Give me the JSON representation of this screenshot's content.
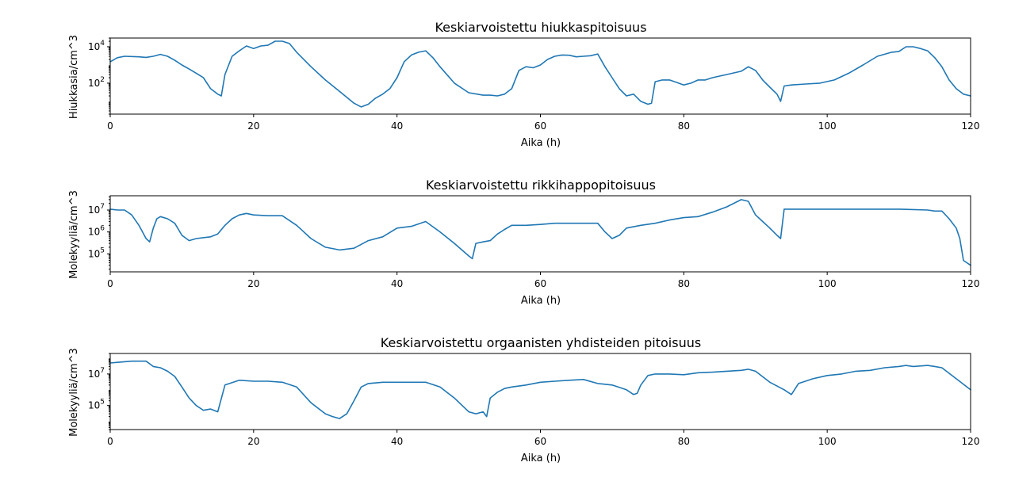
{
  "colors": {
    "series": "#1f77b4",
    "axis": "#000000",
    "background": "#ffffff"
  },
  "chart_data": [
    {
      "type": "line",
      "title": "Keskiarvoistettu hiukkaspitoisuus",
      "xlabel": "Aika (h)",
      "ylabel": "Hiukkasia/cm^3",
      "xlim": [
        0,
        120
      ],
      "ylim": [
        2,
        30000
      ],
      "yscale": "log",
      "xticks": [
        "0",
        "20",
        "40",
        "60",
        "80",
        "100",
        "120"
      ],
      "yticks": [
        {
          "value": 100,
          "base": "10",
          "exp": "2"
        },
        {
          "value": 10000,
          "base": "10",
          "exp": "4"
        }
      ],
      "grid": false,
      "legend": "none",
      "x": [
        0,
        1,
        2,
        4,
        5,
        6,
        7,
        8,
        9,
        10,
        11,
        12,
        13,
        14,
        15,
        15.5,
        16,
        17,
        18,
        19,
        20,
        21,
        22,
        23,
        24,
        25,
        26,
        28,
        30,
        32,
        34,
        35,
        36,
        37,
        38,
        39,
        40,
        41,
        42,
        43,
        44,
        45,
        46,
        48,
        50,
        52,
        53,
        54,
        55,
        56,
        57,
        58,
        59,
        60,
        61,
        62,
        63,
        64,
        65,
        66,
        67,
        68,
        69,
        70,
        71,
        72,
        73,
        74,
        75,
        75.5,
        76,
        77,
        78,
        79,
        80,
        81,
        82,
        83,
        84,
        86,
        88,
        89,
        90,
        91,
        92,
        93,
        93.5,
        94,
        95,
        97,
        99,
        101,
        103,
        105,
        107,
        109,
        110,
        111,
        112,
        113,
        114,
        115,
        116,
        117,
        118,
        119,
        120
      ],
      "values": [
        1500,
        2500,
        3000,
        2800,
        2600,
        3000,
        3800,
        3000,
        1800,
        1000,
        600,
        350,
        200,
        50,
        25,
        20,
        300,
        3000,
        6000,
        11000,
        8000,
        11000,
        12000,
        20000,
        20000,
        15000,
        5000,
        800,
        150,
        35,
        8,
        5,
        7,
        15,
        25,
        50,
        200,
        1500,
        3500,
        5000,
        6000,
        2500,
        800,
        100,
        30,
        22,
        22,
        20,
        25,
        50,
        500,
        800,
        700,
        1000,
        2000,
        3000,
        3500,
        3400,
        2800,
        3000,
        3200,
        4000,
        800,
        200,
        50,
        20,
        25,
        10,
        7,
        8,
        120,
        150,
        150,
        110,
        80,
        100,
        150,
        150,
        200,
        300,
        450,
        800,
        500,
        150,
        60,
        25,
        10,
        70,
        80,
        90,
        100,
        150,
        350,
        1000,
        3000,
        5000,
        5500,
        10000,
        10000,
        8000,
        6000,
        2500,
        800,
        150,
        50,
        25,
        20
      ]
    },
    {
      "type": "line",
      "title": "Keskiarvoistettu rikkihappopitoisuus",
      "xlabel": "Aika (h)",
      "ylabel": "Molekyyliä/cm^3",
      "xlim": [
        0,
        120
      ],
      "ylim": [
        15000,
        45000000
      ],
      "yscale": "log",
      "xticks": [
        "0",
        "20",
        "40",
        "60",
        "80",
        "100",
        "120"
      ],
      "yticks": [
        {
          "value": 100000,
          "base": "10",
          "exp": "5"
        },
        {
          "value": 1000000,
          "base": "10",
          "exp": "6"
        },
        {
          "value": 10000000,
          "base": "10",
          "exp": "7"
        }
      ],
      "grid": false,
      "legend": "none",
      "x": [
        0,
        1,
        2,
        3,
        4,
        5,
        5.5,
        6,
        6.5,
        7,
        8,
        9,
        10,
        11,
        12,
        14,
        15,
        16,
        17,
        18,
        19,
        20,
        22,
        24,
        26,
        28,
        30,
        32,
        34,
        36,
        38,
        40,
        42,
        44,
        46,
        48,
        50,
        50.5,
        51,
        52,
        53,
        54,
        55,
        56,
        58,
        60,
        62,
        64,
        66,
        68,
        69,
        70,
        71,
        72,
        74,
        76,
        78,
        80,
        82,
        84,
        86,
        88,
        89,
        90,
        91,
        92,
        93,
        93.5,
        94,
        96,
        98,
        100,
        105,
        110,
        114,
        115,
        116,
        117,
        118,
        118.5,
        119,
        120
      ],
      "values": [
        11000000,
        10000000,
        10000000,
        6000000,
        2000000,
        500000,
        350000,
        1500000,
        4000000,
        5000000,
        4000000,
        2500000,
        700000,
        400000,
        500000,
        600000,
        800000,
        2000000,
        4000000,
        6000000,
        7000000,
        6000000,
        5500000,
        5500000,
        2000000,
        500000,
        200000,
        150000,
        180000,
        400000,
        600000,
        1500000,
        1800000,
        3000000,
        1000000,
        300000,
        80000,
        60000,
        300000,
        350000,
        400000,
        800000,
        1300000,
        2000000,
        2000000,
        2200000,
        2500000,
        2500000,
        2500000,
        2500000,
        1000000,
        500000,
        700000,
        1500000,
        2000000,
        2500000,
        3500000,
        4500000,
        5000000,
        8000000,
        14000000,
        30000000,
        25000000,
        6000000,
        3000000,
        1500000,
        700000,
        500000,
        11000000,
        11000000,
        11000000,
        11000000,
        11000000,
        11000000,
        10000000,
        9000000,
        9000000,
        4000000,
        1500000,
        500000,
        50000,
        30000
      ]
    },
    {
      "type": "line",
      "title": "Keskiarvoistettu orgaanisten yhdisteiden pitoisuus",
      "xlabel": "Aika (h)",
      "ylabel": "Molekyyliä/cm^3",
      "xlim": [
        0,
        120
      ],
      "ylim": [
        3000,
        200000000
      ],
      "yscale": "log",
      "xticks": [
        "0",
        "20",
        "40",
        "60",
        "80",
        "100",
        "120"
      ],
      "yticks": [
        {
          "value": 100000,
          "base": "10",
          "exp": "5"
        },
        {
          "value": 10000000,
          "base": "10",
          "exp": "7"
        }
      ],
      "grid": false,
      "legend": "none",
      "x": [
        0,
        1,
        2,
        3,
        4,
        5,
        6,
        7,
        8,
        9,
        10,
        11,
        12,
        13,
        14,
        15,
        16,
        18,
        20,
        22,
        24,
        26,
        28,
        30,
        31,
        32,
        33,
        34,
        35,
        36,
        38,
        40,
        42,
        44,
        46,
        48,
        50,
        51,
        52,
        52.5,
        53,
        54,
        55,
        56,
        58,
        60,
        62,
        64,
        66,
        68,
        70,
        72,
        73,
        73.5,
        74,
        75,
        76,
        78,
        80,
        82,
        84,
        86,
        88,
        89,
        90,
        92,
        94,
        95,
        96,
        98,
        100,
        102,
        104,
        106,
        108,
        110,
        111,
        112,
        114,
        115,
        116,
        118,
        120
      ],
      "values": [
        50000000,
        55000000,
        60000000,
        65000000,
        65000000,
        65000000,
        30000000,
        25000000,
        15000000,
        7000000,
        1500000,
        300000,
        100000,
        50000,
        60000,
        40000,
        2000000,
        4000000,
        3500000,
        3500000,
        3000000,
        1500000,
        150000,
        30000,
        20000,
        15000,
        30000,
        200000,
        1500000,
        2500000,
        3000000,
        3000000,
        3000000,
        3000000,
        1500000,
        300000,
        40000,
        30000,
        40000,
        20000,
        300000,
        700000,
        1200000,
        1500000,
        2000000,
        3000000,
        3500000,
        4000000,
        4500000,
        2500000,
        2000000,
        1000000,
        500000,
        600000,
        2000000,
        8000000,
        10000000,
        10000000,
        9000000,
        12000000,
        13000000,
        15000000,
        17000000,
        20000000,
        15000000,
        3000000,
        1000000,
        500000,
        2500000,
        5000000,
        8000000,
        10000000,
        15000000,
        17000000,
        25000000,
        30000000,
        35000000,
        30000000,
        35000000,
        30000000,
        25000000,
        5000000,
        1000000
      ]
    }
  ]
}
